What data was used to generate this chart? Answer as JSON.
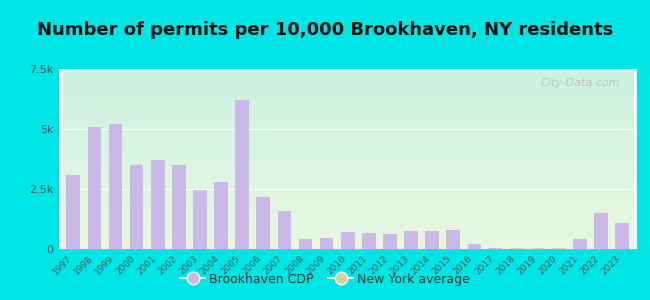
{
  "title": "Number of permits per 10,000 Brookhaven, NY residents",
  "years": [
    1997,
    1998,
    1999,
    2000,
    2001,
    2002,
    2003,
    2004,
    2005,
    2006,
    2007,
    2008,
    2009,
    2010,
    2011,
    2012,
    2013,
    2014,
    2015,
    2016,
    2017,
    2018,
    2019,
    2020,
    2021,
    2022,
    2023
  ],
  "brookhaven_values": [
    3100,
    5100,
    5200,
    3500,
    3700,
    3500,
    2450,
    2800,
    6200,
    2150,
    1600,
    400,
    450,
    700,
    680,
    620,
    750,
    750,
    800,
    200,
    30,
    15,
    15,
    15,
    400,
    1500,
    1100
  ],
  "ny_avg_values": [
    30,
    30,
    30,
    30,
    30,
    30,
    30,
    30,
    30,
    30,
    30,
    30,
    30,
    30,
    30,
    30,
    30,
    30,
    30,
    30,
    30,
    30,
    30,
    30,
    30,
    30,
    30
  ],
  "brookhaven_color": "#c9b8e8",
  "ny_avg_color": "#d4d49a",
  "background_outer": "#00e5e5",
  "ylim": [
    0,
    7500
  ],
  "yticks": [
    0,
    2500,
    5000,
    7500
  ],
  "ytick_labels": [
    "0",
    "2.5k",
    "5k",
    "7.5k"
  ],
  "watermark": "City-Data.com",
  "legend_brookhaven": "Brookhaven CDP",
  "legend_ny": "New York average",
  "title_fontsize": 13,
  "bar_width": 0.65,
  "fig_width": 6.5,
  "fig_height": 3.0
}
